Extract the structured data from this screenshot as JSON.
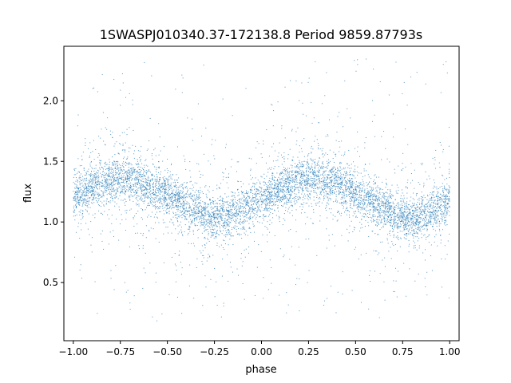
{
  "chart_data": {
    "type": "scatter",
    "title": "1SWASPJ010340.37-172138.8 Period 9859.87793s",
    "xlabel": "phase",
    "ylabel": "flux",
    "xlim": [
      -1.05,
      1.05
    ],
    "ylim": [
      0.02,
      2.45
    ],
    "x_ticks": [
      -1.0,
      -0.75,
      -0.5,
      -0.25,
      0.0,
      0.25,
      0.5,
      0.75,
      1.0
    ],
    "x_tick_labels": [
      "−1.00",
      "−0.75",
      "−0.50",
      "−0.25",
      "0.00",
      "0.25",
      "0.50",
      "0.75",
      "1.00"
    ],
    "y_ticks": [
      0.5,
      1.0,
      1.5,
      2.0
    ],
    "y_tick_labels": [
      "0.5",
      "1.0",
      "1.5",
      "2.0"
    ],
    "grid": false,
    "point_color": "#1f77b4",
    "series": [
      {
        "x": [
          -1.0,
          -0.9,
          -0.8,
          -0.75,
          -0.7,
          -0.6,
          -0.5,
          -0.4,
          -0.3,
          -0.25,
          -0.2,
          -0.1,
          0.0,
          0.1,
          0.2,
          0.25,
          0.3,
          0.4,
          0.5,
          0.6,
          0.7,
          0.75,
          0.8,
          0.9,
          1.0
        ],
        "y": [
          1.21,
          1.29,
          1.35,
          1.36,
          1.35,
          1.3,
          1.22,
          1.13,
          1.06,
          1.04,
          1.05,
          1.1,
          1.18,
          1.27,
          1.34,
          1.36,
          1.36,
          1.32,
          1.24,
          1.15,
          1.07,
          1.04,
          1.04,
          1.08,
          1.2
        ]
      }
    ]
  }
}
